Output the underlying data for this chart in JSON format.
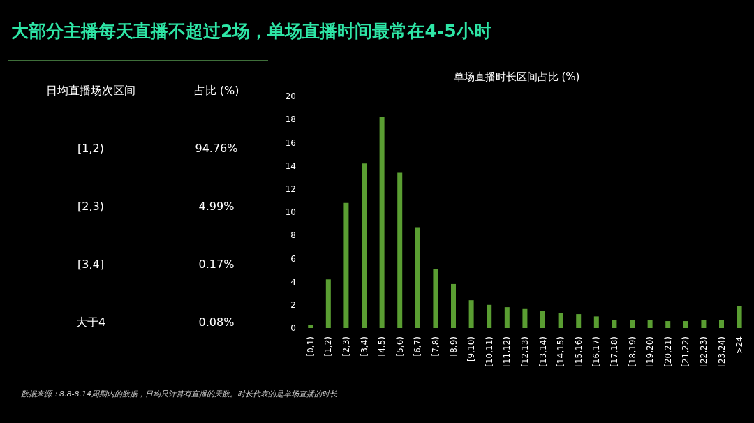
{
  "chart_data": [
    {
      "type": "other",
      "title": "大部分主播每天直播不超过2场，单场直播时间最常在4-5小时",
      "annotations": [
        "日均直播场次区间",
        "占比 (%)"
      ],
      "categories": [
        "[1,2)",
        "[2,3)",
        "[3,4]",
        "大于4"
      ],
      "value_labels": [
        "94.76%",
        "4.99%",
        "0.17%",
        "0.08%"
      ]
    },
    {
      "type": "bar",
      "title": "单场直播时长区间占比 (%)",
      "categories": [
        "[0,1)",
        "[1,2)",
        "[2,3)",
        "[3,4)",
        "[4,5)",
        "[5,6)",
        "[6,7)",
        "[7,8)",
        "[8,9)",
        "[9,10)",
        "[10,11)",
        "[11,12)",
        "[12,13)",
        "[13,14)",
        "[14,15)",
        "[15,16)",
        "[16,17)",
        "[17,18)",
        "[18,19)",
        "[19,20)",
        "[20,21)",
        "[21,22)",
        "[22,23)",
        "[23,24)",
        ">24"
      ],
      "values": [
        0.3,
        4.2,
        10.8,
        14.2,
        18.2,
        13.4,
        8.7,
        5.1,
        3.8,
        2.4,
        2.0,
        1.8,
        1.7,
        1.5,
        1.3,
        1.2,
        1.0,
        0.7,
        0.7,
        0.7,
        0.6,
        0.6,
        0.7,
        0.7,
        1.9
      ],
      "color": "#5a9e32",
      "ylim": [
        0,
        20
      ],
      "yticks": [
        0,
        2,
        4,
        6,
        8,
        10,
        12,
        14,
        16,
        18,
        20
      ],
      "grid": false,
      "annotations": [
        "数据来源：8.8-8.14周期内的数据，日均只计算有直播的天数。时长代表的是单场直播的时长"
      ]
    }
  ]
}
